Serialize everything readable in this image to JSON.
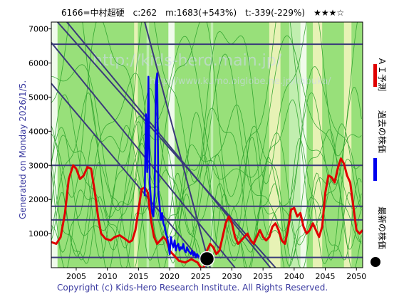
{
  "header": {
    "title": "6166=中村超硬　c:262　m:1683(+543%)　t:-339(-229%)　★★★☆"
  },
  "side_label": "Generated on Monday 2026/1/5.",
  "watermark": {
    "main": "http://kids-hero.main.jp/",
    "sub": "http://www.kumo.biglobe.ne.jp/kabuka/"
  },
  "copyright": "Copyright (c) Kids-Hero Research Institute. All Rights Reserved.",
  "legend": [
    {
      "label": "ＡＩ予測",
      "color": "#e00000",
      "icon": "red-bar"
    },
    {
      "label": "過去の株価",
      "color": "#0000ee",
      "icon": "blue-bar"
    },
    {
      "label": "最新の株価",
      "color": "#000000",
      "icon": "black-dot"
    }
  ],
  "colors": {
    "background_green": "#98e07a",
    "lightgreen": "#c8f0b8",
    "yellow_band": "#f4f4c0",
    "white_band": "#ffffff",
    "sim_line": "#2aa02a",
    "ai_line": "#e00000",
    "price_line": "#0000ee",
    "trend_line": "#3a3a7a",
    "last_dot": "#000000"
  },
  "chart_data": {
    "type": "line",
    "title": "6166=中村超硬　c:262　m:1683(+543%)　t:-339(-229%)　★★★☆",
    "xlim": [
      2001,
      2051
    ],
    "ylim": [
      0,
      7200
    ],
    "x_ticks": [
      2005,
      2010,
      2015,
      2020,
      2025,
      2030,
      2035,
      2040,
      2045,
      2050
    ],
    "y_ticks": [
      1000,
      2000,
      3000,
      4000,
      5000,
      6000,
      7000
    ],
    "horizontal_lines": [
      300,
      1400,
      1800,
      3000,
      6550
    ],
    "trend_lines": [
      {
        "x": [
          2002.0,
          2037.0
        ],
        "y": [
          7200,
          0
        ]
      },
      {
        "x": [
          2003.5,
          2036.2
        ],
        "y": [
          7200,
          0
        ]
      },
      {
        "x": [
          2001.0,
          2030.5
        ],
        "y": [
          6600,
          0
        ]
      },
      {
        "x": [
          2001.0,
          2026.0
        ],
        "y": [
          5400,
          0
        ]
      },
      {
        "x": [
          2016.0,
          2026.5
        ],
        "y": [
          7200,
          0
        ]
      }
    ],
    "bands": [
      {
        "x0": 2001.0,
        "x1": 2002.0,
        "kind": "white"
      },
      {
        "x0": 2014.3,
        "x1": 2014.9,
        "kind": "yellow"
      },
      {
        "x0": 2016.3,
        "x1": 2016.7,
        "kind": "lightgreen"
      },
      {
        "x0": 2019.8,
        "x1": 2020.8,
        "kind": "white"
      },
      {
        "x0": 2026.6,
        "x1": 2027.0,
        "kind": "lightgreen"
      },
      {
        "x0": 2036.0,
        "x1": 2037.8,
        "kind": "yellow"
      },
      {
        "x0": 2039.2,
        "x1": 2041.0,
        "kind": "lightgreen"
      },
      {
        "x0": 2041.0,
        "x1": 2042.0,
        "kind": "white"
      },
      {
        "x0": 2043.0,
        "x1": 2044.5,
        "kind": "yellow"
      },
      {
        "x0": 2048.0,
        "x1": 2049.2,
        "kind": "yellow"
      }
    ],
    "series": [
      {
        "name": "ＡＩ予測",
        "color": "#e00000",
        "x": [
          2001.0,
          2001.8,
          2002.5,
          2003.2,
          2003.8,
          2004.5,
          2005.0,
          2005.6,
          2006.2,
          2006.8,
          2007.4,
          2008.0,
          2008.5,
          2009.0,
          2009.7,
          2010.5,
          2011.2,
          2012.0,
          2012.8,
          2013.5,
          2014.0,
          2014.5,
          2015.0,
          2015.5,
          2016.0,
          2016.5,
          2017.0,
          2017.5,
          2018.0,
          2018.5,
          2019.0,
          2019.5,
          2020.0,
          2020.5,
          2021.0,
          2021.5,
          2022.0,
          2022.5,
          2023.0,
          2023.5,
          2024.0,
          2024.5,
          2025.0,
          2025.5,
          2026.0,
          2026.5,
          2027.0,
          2027.5,
          2028.0,
          2028.5,
          2029.0,
          2029.5,
          2030.0,
          2030.5,
          2031.0,
          2031.5,
          2032.0,
          2032.5,
          2033.0,
          2033.5,
          2034.0,
          2034.5,
          2035.0,
          2035.5,
          2036.0,
          2036.5,
          2037.0,
          2037.5,
          2038.0,
          2038.5,
          2039.0,
          2039.5,
          2040.0,
          2040.5,
          2041.0,
          2041.5,
          2042.0,
          2042.5,
          2043.0,
          2043.5,
          2044.0,
          2044.5,
          2045.0,
          2045.5,
          2046.0,
          2046.5,
          2047.0,
          2047.5,
          2048.0,
          2048.5,
          2049.0,
          2049.5,
          2050.0,
          2050.5,
          2051.0
        ],
        "y": [
          750,
          700,
          900,
          1600,
          2600,
          3000,
          2900,
          2600,
          2700,
          2950,
          2900,
          2200,
          1500,
          1000,
          850,
          800,
          900,
          950,
          850,
          750,
          800,
          1100,
          1700,
          2300,
          2350,
          2200,
          1400,
          900,
          700,
          800,
          900,
          800,
          500,
          400,
          300,
          200,
          180,
          150,
          200,
          250,
          200,
          150,
          0,
          0,
          500,
          700,
          600,
          400,
          500,
          900,
          1300,
          1500,
          1300,
          900,
          700,
          800,
          900,
          1000,
          800,
          700,
          900,
          1100,
          900,
          800,
          900,
          1200,
          1300,
          1100,
          800,
          700,
          1100,
          1700,
          1750,
          1500,
          1600,
          1200,
          1000,
          1100,
          1300,
          1100,
          900,
          1200,
          2200,
          2700,
          2650,
          2500,
          2900,
          3200,
          3050,
          2700,
          2500,
          1800,
          1100,
          1000,
          1100
        ]
      },
      {
        "name": "過去の株価",
        "color": "#0000ee",
        "x": [
          2016.0,
          2016.2,
          2016.4,
          2016.6,
          2016.8,
          2017.0,
          2017.2,
          2017.4,
          2017.6,
          2017.8,
          2018.0,
          2018.2,
          2018.4,
          2018.6,
          2018.8,
          2019.0,
          2019.2,
          2019.4,
          2019.6,
          2019.8,
          2020.0,
          2020.2,
          2020.4,
          2020.6,
          2020.8,
          2021.0,
          2021.2,
          2021.4,
          2021.6,
          2021.8,
          2022.0,
          2022.2,
          2022.4,
          2022.6,
          2022.8,
          2023.0,
          2023.2,
          2023.4,
          2023.6,
          2023.8,
          2024.0,
          2024.2,
          2024.4,
          2024.6,
          2024.8,
          2025.0,
          2025.2,
          2025.4,
          2025.6,
          2025.8,
          2026.0
        ],
        "y": [
          2100,
          4500,
          2800,
          5600,
          2500,
          2000,
          1600,
          1500,
          2200,
          5400,
          5700,
          2200,
          1800,
          1400,
          1600,
          1300,
          1200,
          1000,
          900,
          700,
          400,
          900,
          700,
          600,
          800,
          500,
          650,
          700,
          500,
          600,
          550,
          700,
          500,
          450,
          600,
          500,
          450,
          400,
          500,
          350,
          450,
          300,
          400,
          350,
          300,
          320,
          280,
          300,
          270,
          260,
          262
        ]
      }
    ],
    "last_point": {
      "x": 2026.0,
      "y": 262
    },
    "sim_lines": [
      {
        "phase": 0.0,
        "amp": 1500,
        "base": 2200,
        "freq": 0.55
      },
      {
        "phase": 1.2,
        "amp": 1800,
        "base": 2700,
        "freq": 0.48
      },
      {
        "phase": 2.4,
        "amp": 1300,
        "base": 1600,
        "freq": 0.7
      },
      {
        "phase": 0.6,
        "amp": 2200,
        "base": 3300,
        "freq": 0.4
      },
      {
        "phase": 3.1,
        "amp": 1600,
        "base": 2400,
        "freq": 0.62
      },
      {
        "phase": 4.0,
        "amp": 2000,
        "base": 4200,
        "freq": 0.35
      },
      {
        "phase": 5.0,
        "amp": 1100,
        "base": 1300,
        "freq": 0.85
      },
      {
        "phase": 1.8,
        "amp": 2400,
        "base": 4800,
        "freq": 0.45
      },
      {
        "phase": 2.9,
        "amp": 900,
        "base": 1000,
        "freq": 0.95
      },
      {
        "phase": 0.3,
        "amp": 1700,
        "base": 3000,
        "freq": 0.58
      },
      {
        "phase": 4.6,
        "amp": 2100,
        "base": 5200,
        "freq": 0.5
      },
      {
        "phase": 3.7,
        "amp": 1400,
        "base": 2000,
        "freq": 0.75
      }
    ]
  }
}
